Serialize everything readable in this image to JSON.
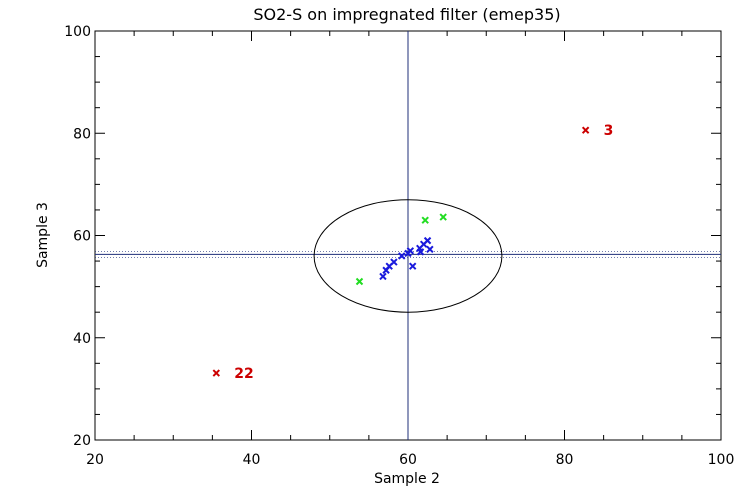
{
  "chart_data": {
    "type": "scatter",
    "title": "SO2-S on impregnated filter (emep35)",
    "xlabel": "Sample 2",
    "ylabel": "Sample 3",
    "xlim": [
      20,
      100
    ],
    "ylim": [
      20,
      100
    ],
    "xticks": [
      20,
      40,
      60,
      80,
      100
    ],
    "yticks": [
      20,
      40,
      60,
      80,
      100
    ],
    "grid": false,
    "median_x": 60,
    "median_y": 56.3,
    "ellipse": {
      "cx": 60,
      "cy": 56,
      "rx": 12,
      "ry": 11
    },
    "colors": {
      "blue": "#1a1adc",
      "green": "#22dd22",
      "red": "#cc0000",
      "refline": "#1f2f7a"
    },
    "series": [
      {
        "color_key": "blue",
        "points": [
          [
            56.8,
            52
          ],
          [
            57.2,
            53.2
          ],
          [
            57.6,
            54
          ],
          [
            58.2,
            54.8
          ],
          [
            59.2,
            56
          ],
          [
            60,
            56.5
          ],
          [
            60.3,
            57
          ],
          [
            61.5,
            57.5
          ],
          [
            62,
            58.3
          ],
          [
            62.5,
            59
          ],
          [
            62.8,
            57.3
          ],
          [
            61.6,
            56.8
          ],
          [
            60.6,
            54
          ]
        ]
      },
      {
        "color_key": "green",
        "points": [
          [
            53.8,
            51
          ],
          [
            62.2,
            63
          ],
          [
            64.5,
            63.6
          ]
        ]
      },
      {
        "color_key": "red",
        "points": [
          [
            82.7,
            80.6
          ],
          [
            35.5,
            33.1
          ]
        ],
        "labels": [
          "3",
          "22"
        ]
      }
    ]
  }
}
